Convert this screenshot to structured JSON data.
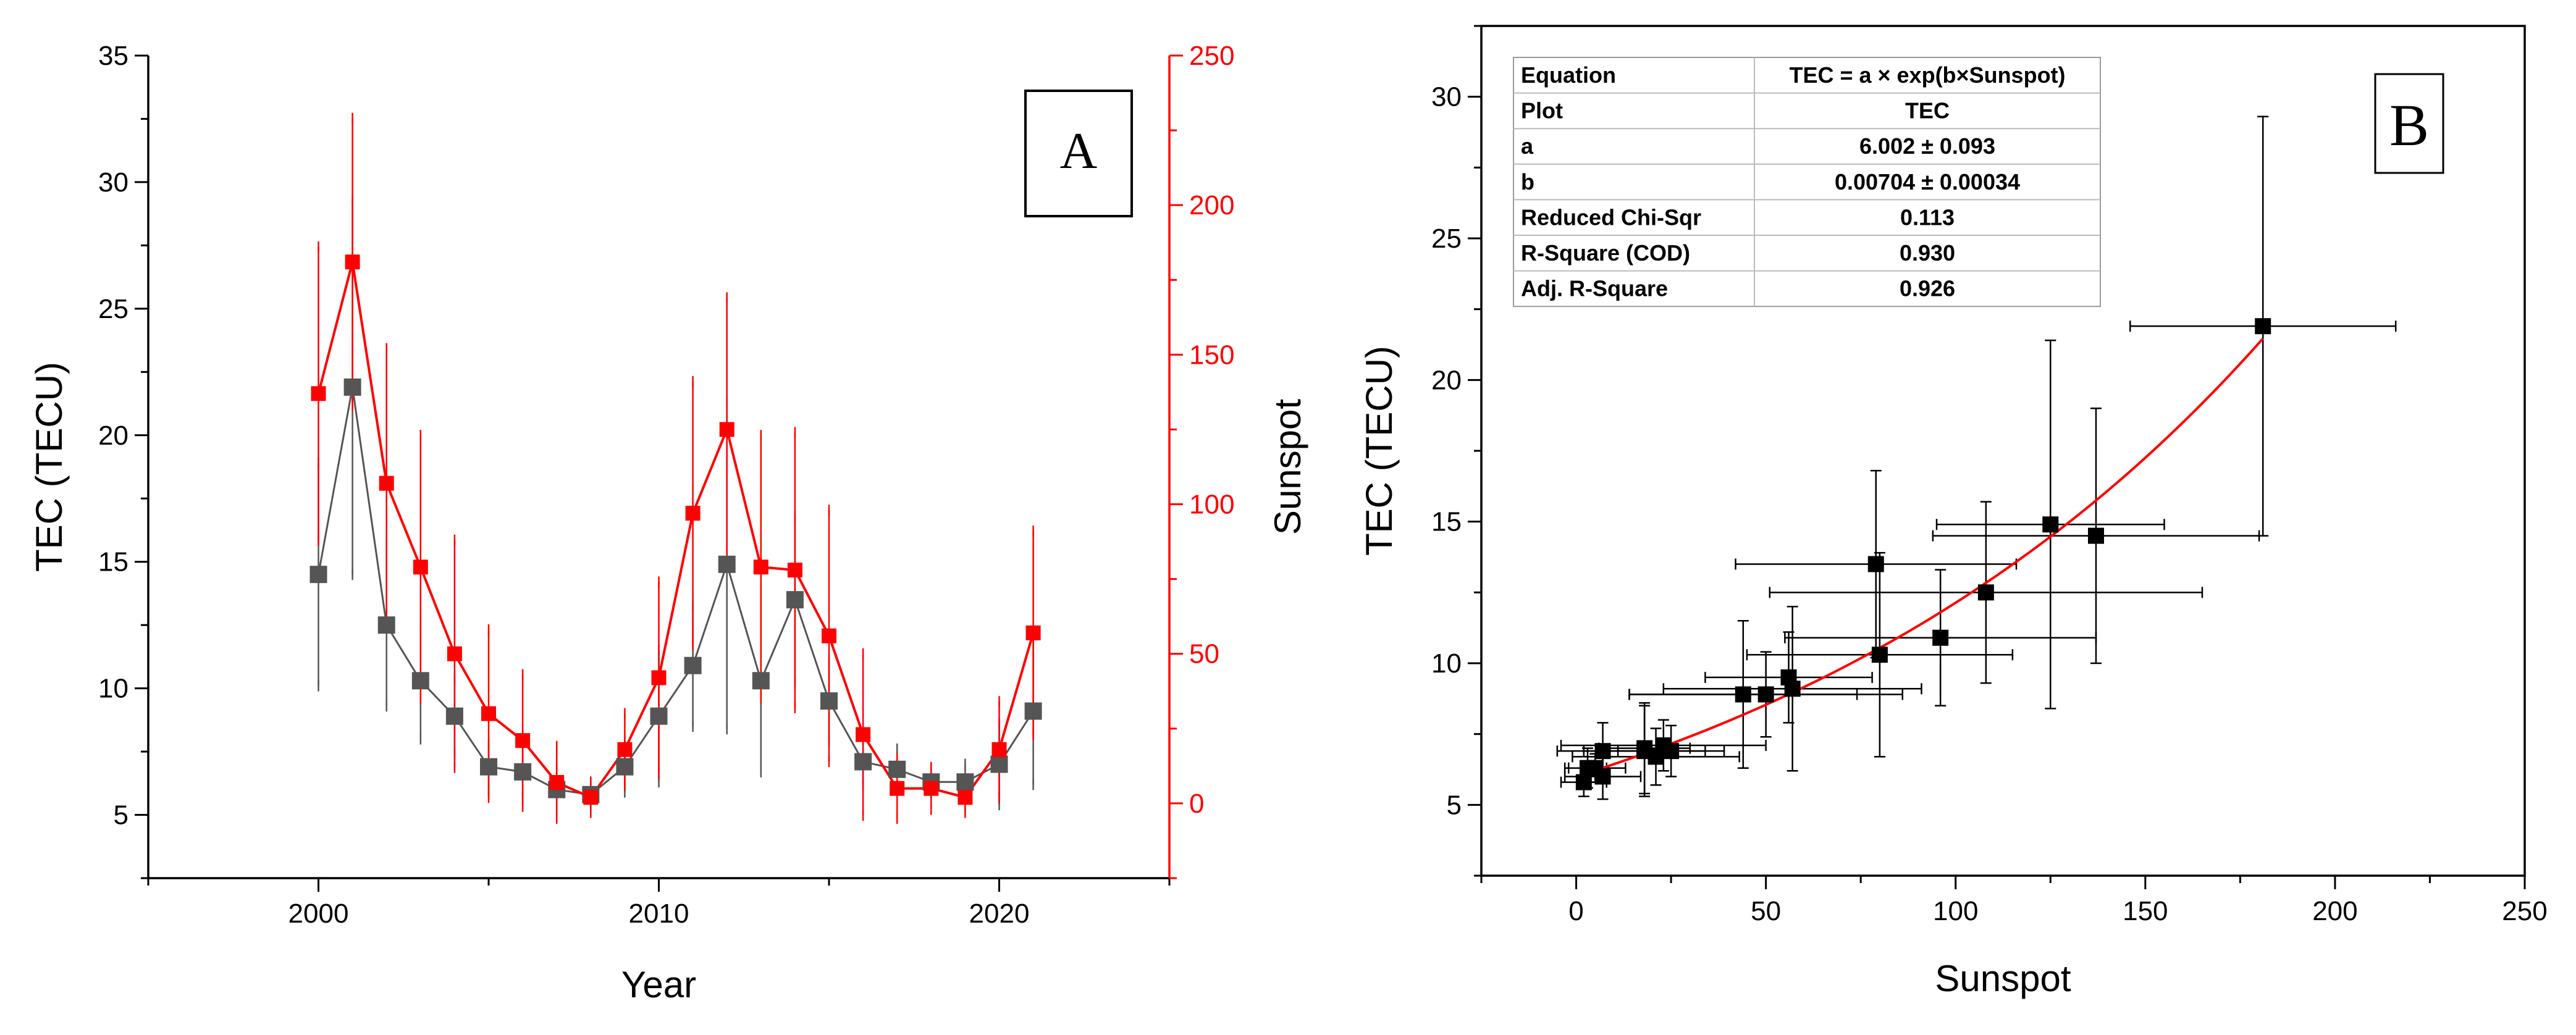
{
  "panelA": {
    "label": "A",
    "xlabel": "Year",
    "ylabel_left": "TEC (TECU)",
    "ylabel_right": "Sunspot",
    "xticks": [
      "2000",
      "2010",
      "2020"
    ],
    "yticks_left": [
      "5",
      "10",
      "15",
      "20",
      "25",
      "30",
      "35"
    ],
    "yticks_right": [
      "0",
      "50",
      "100",
      "150",
      "200",
      "250"
    ]
  },
  "panelB": {
    "label": "B",
    "xlabel": "Sunspot",
    "ylabel": "TEC (TECU)",
    "xticks": [
      "0",
      "50",
      "100",
      "150",
      "200",
      "250"
    ],
    "yticks": [
      "5",
      "10",
      "15",
      "20",
      "25",
      "30"
    ],
    "fit_table": [
      [
        "Equation",
        "TEC = a × exp(b×Sunspot)"
      ],
      [
        "Plot",
        "TEC"
      ],
      [
        "a",
        "6.002 ± 0.093"
      ],
      [
        "b",
        "0.00704 ± 0.00034"
      ],
      [
        "Reduced Chi-Sqr",
        "0.113"
      ],
      [
        "R-Square (COD)",
        "0.930"
      ],
      [
        "Adj. R-Square",
        "0.926"
      ]
    ]
  },
  "colors": {
    "tec": "#555555",
    "sunspot": "#ff0000",
    "fit": "#ff0000",
    "black": "#000000"
  },
  "chart_data": [
    {
      "type": "line",
      "xlabel": "Year",
      "ylabel": "TEC (TECU)",
      "ylabel_right": "Sunspot",
      "xlim": [
        1995,
        2025
      ],
      "ylim": [
        2.5,
        35
      ],
      "ylim_right": [
        -25,
        250
      ],
      "x": [
        2000,
        2001,
        2002,
        2003,
        2004,
        2005,
        2006,
        2007,
        2008,
        2009,
        2010,
        2011,
        2012,
        2013,
        2014,
        2015,
        2016,
        2017,
        2018,
        2019,
        2020,
        2021
      ],
      "series": [
        {
          "axis": "left",
          "values": [
            14.5,
            21.9,
            12.5,
            10.3,
            8.9,
            6.9,
            6.7,
            6.0,
            5.8,
            6.9,
            8.9,
            10.9,
            14.9,
            10.3,
            13.5,
            9.5,
            7.1,
            6.8,
            6.3,
            6.3,
            7.0,
            9.1
          ],
          "err": [
            4.4,
            7.4,
            3.2,
            2.3,
            1.5,
            0.9,
            1.0,
            0.8,
            0.5,
            1.0,
            2.6,
            2.4,
            6.5,
            3.6,
            3.3,
            1.6,
            0.9,
            0.8,
            0.5,
            0.7,
            1.6,
            2.9
          ]
        },
        {
          "axis": "right",
          "values": [
            137,
            181,
            107,
            79,
            50,
            30,
            21,
            7,
            2,
            18,
            42,
            97,
            125,
            79,
            78,
            56,
            23,
            5,
            5,
            2,
            18,
            57
          ],
          "err": [
            49,
            48,
            45,
            44,
            38,
            28,
            22,
            12,
            5,
            12,
            32,
            44,
            44,
            44,
            46,
            42,
            27,
            10,
            7,
            5,
            16,
            34
          ]
        }
      ]
    },
    {
      "type": "scatter",
      "xlabel": "Sunspot",
      "ylabel": "TEC (TECU)",
      "xlim": [
        -25,
        250
      ],
      "ylim": [
        2.5,
        32.5
      ],
      "points": [
        {
          "x": 181,
          "y": 21.9,
          "xerr": 35,
          "yerr": 7.4
        },
        {
          "x": 125,
          "y": 14.9,
          "xerr": 30,
          "yerr": 6.5
        },
        {
          "x": 137,
          "y": 14.5,
          "xerr": 43,
          "yerr": 4.5
        },
        {
          "x": 79,
          "y": 13.5,
          "xerr": 37,
          "yerr": 3.3
        },
        {
          "x": 108,
          "y": 12.5,
          "xerr": 57,
          "yerr": 3.2
        },
        {
          "x": 96,
          "y": 10.9,
          "xerr": 41,
          "yerr": 2.4
        },
        {
          "x": 80,
          "y": 10.3,
          "xerr": 35,
          "yerr": 3.6
        },
        {
          "x": 56,
          "y": 9.5,
          "xerr": 22,
          "yerr": 1.6
        },
        {
          "x": 44,
          "y": 8.9,
          "xerr": 30,
          "yerr": 2.6
        },
        {
          "x": 50,
          "y": 8.9,
          "xerr": 36,
          "yerr": 1.5
        },
        {
          "x": 57,
          "y": 9.1,
          "xerr": 34,
          "yerr": 2.9
        },
        {
          "x": 7,
          "y": 6.9,
          "xerr": 12,
          "yerr": 1.0
        },
        {
          "x": 21,
          "y": 6.7,
          "xerr": 22,
          "yerr": 1.0
        },
        {
          "x": 25,
          "y": 6.9,
          "xerr": 14,
          "yerr": 0.9
        },
        {
          "x": 18,
          "y": 6.9,
          "xerr": 16,
          "yerr": 1.6
        },
        {
          "x": 3,
          "y": 6.3,
          "xerr": 5,
          "yerr": 0.7
        },
        {
          "x": 2,
          "y": 5.8,
          "xerr": 6,
          "yerr": 0.5
        },
        {
          "x": 5,
          "y": 6.3,
          "xerr": 8,
          "yerr": 0.5
        },
        {
          "x": 7,
          "y": 6.0,
          "xerr": 10,
          "yerr": 0.8
        },
        {
          "x": 23,
          "y": 7.1,
          "xerr": 27,
          "yerr": 0.9
        },
        {
          "x": 18,
          "y": 7.0,
          "xerr": 12,
          "yerr": 1.6
        }
      ],
      "fit": {
        "a": 6.002,
        "b": 0.00704,
        "x_range": [
          0,
          181
        ]
      }
    }
  ]
}
